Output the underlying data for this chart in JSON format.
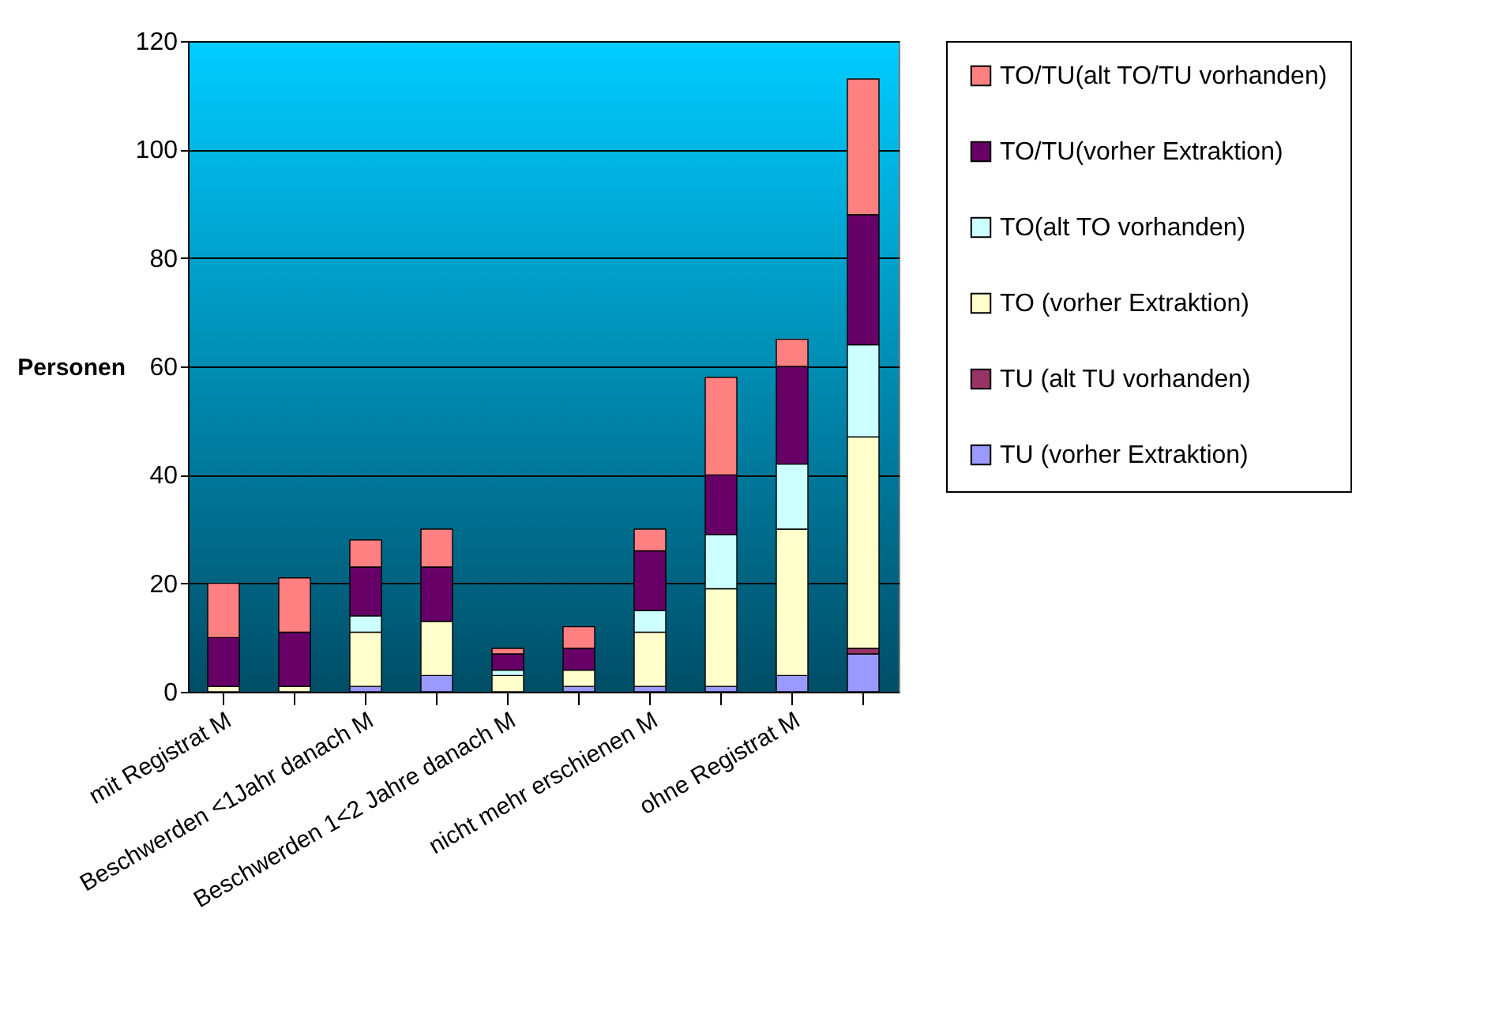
{
  "chart_data": {
    "type": "bar",
    "stacked": true,
    "ylabel": "Personen",
    "categories": [
      "mit Registrat M",
      null,
      "Beschwerden <1Jahr danach M",
      null,
      "Beschwerden 1<2 Jahre danach M",
      null,
      "nicht mehr erschienen M",
      null,
      "ohne Registrat M",
      null
    ],
    "series": [
      {
        "name": "TU (vorher Extraktion)",
        "color": "#9999ff",
        "values": [
          0,
          0,
          1,
          3,
          0,
          1,
          1,
          1,
          3,
          7
        ]
      },
      {
        "name": "TU (alt TU vorhanden)",
        "color": "#993366",
        "values": [
          0,
          0,
          0,
          0,
          0,
          0,
          0,
          0,
          0,
          1
        ]
      },
      {
        "name": "TO (vorher Extraktion)",
        "color": "#ffffcc",
        "values": [
          1,
          1,
          10,
          10,
          3,
          3,
          10,
          18,
          27,
          39
        ]
      },
      {
        "name": "TO(alt TO vorhanden)",
        "color": "#ccffff",
        "values": [
          0,
          0,
          3,
          0,
          1,
          0,
          4,
          10,
          12,
          17
        ]
      },
      {
        "name": "TO/TU(vorher Extraktion)",
        "color": "#660066",
        "values": [
          9,
          10,
          9,
          10,
          3,
          4,
          11,
          11,
          18,
          24
        ]
      },
      {
        "name": "TO/TU(alt TO/TU vorhanden)",
        "color": "#ff8080",
        "values": [
          10,
          10,
          5,
          7,
          1,
          4,
          4,
          18,
          5,
          25
        ]
      }
    ],
    "ylim": [
      0,
      120
    ],
    "yticks": [
      0,
      20,
      40,
      60,
      80,
      100,
      120
    ],
    "grid": "y",
    "legend": "right"
  }
}
